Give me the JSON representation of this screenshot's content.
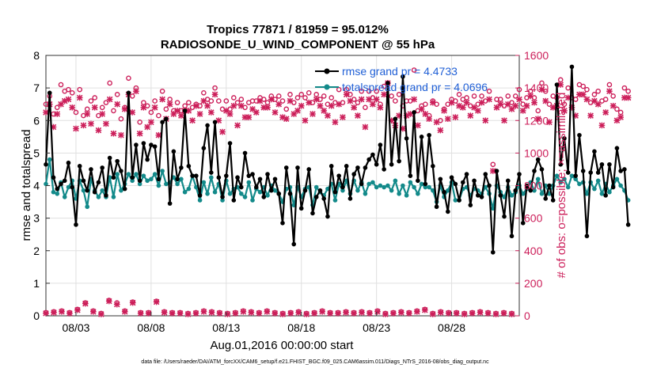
{
  "colors": {
    "rmse": "#000000",
    "spread": "#138a8a",
    "obs": "#cc1f5a",
    "legend_text": "#1f5fd6",
    "axis": "#333333",
    "grid": "#e0e0e0"
  },
  "chart_data": {
    "type": "line",
    "title_line1": "Tropics 77871 / 81959 = 95.012%",
    "title_line2": "RADIOSONDE_U_WIND_COMPONENT @ 55 hPa",
    "xlabel": "Aug.01,2016 00:00:00 start",
    "ylabel_left": "rmse and totalspread",
    "ylabel_right": "# of obs: o=possible; ×=assimilated",
    "footnote": "data file: /Users/raeder/DAI/ATM_forcXX/CAM6_setup/f.e21.FHIST_BGC.f09_025.CAM6assim.011/Diags_NTrS_2016-08/obs_diag_output.nc",
    "x_range": [
      1,
      32.5
    ],
    "x_ticks": [
      3,
      8,
      13,
      18,
      23,
      28
    ],
    "x_tick_labels": [
      "08/03",
      "08/08",
      "08/13",
      "08/18",
      "08/23",
      "08/28"
    ],
    "y_left_range": [
      0,
      8
    ],
    "y_left_ticks": [
      "0",
      "1",
      "2",
      "3",
      "4",
      "5",
      "6",
      "7",
      "8"
    ],
    "y_right_range": [
      0,
      1600
    ],
    "y_right_ticks": [
      "0",
      "200",
      "400",
      "600",
      "800",
      "1000",
      "1200",
      "1400",
      "1600"
    ],
    "grid": true,
    "legend_position": "top-right",
    "legend": [
      {
        "name": "rmse grand pr = 4.4733",
        "series": "rmse"
      },
      {
        "name": "totalspread grand pr = 4.0696",
        "series": "totalspread"
      }
    ],
    "x_start": 1.0,
    "x_step": 0.25,
    "rmse": [
      4.65,
      6.85,
      4.25,
      3.9,
      4.05,
      4.15,
      4.7,
      3.95,
      2.8,
      4.6,
      4.15,
      3.85,
      4.5,
      3.8,
      4.1,
      4.55,
      3.7,
      4.85,
      4.25,
      4.75,
      4.45,
      3.9,
      6.85,
      4.25,
      5.25,
      4.15,
      5.3,
      4.8,
      5.25,
      5.2,
      4.2,
      5.95,
      6.05,
      3.45,
      5.05,
      4.2,
      4.55,
      6.3,
      4.6,
      4.3,
      4.3,
      3.7,
      5.15,
      5.85,
      4.4,
      5.95,
      4.25,
      3.65,
      4.3,
      5.3,
      3.55,
      4.25,
      3.95,
      5.0,
      4.3,
      4.35,
      3.95,
      4.2,
      3.65,
      4.35,
      3.85,
      4.2,
      3.75,
      2.85,
      4.55,
      3.75,
      2.2,
      4.55,
      3.3,
      3.85,
      4.5,
      3.15,
      3.65,
      3.85,
      3.6,
      3.05,
      4.6,
      3.8,
      4.3,
      3.95,
      4.6,
      3.6,
      4.35,
      4.55,
      4.05,
      4.55,
      4.8,
      4.95,
      4.65,
      5.25,
      4.5,
      7.15,
      4.65,
      6.05,
      4.75,
      7.35,
      5.45,
      4.3,
      6.25,
      4.15,
      5.5,
      4.05,
      5.55,
      4.6,
      3.35,
      4.2,
      3.8,
      3.2,
      4.25,
      4.05,
      3.55,
      4.1,
      4.35,
      3.4,
      4.15,
      3.7,
      3.65,
      4.35,
      4.0,
      1.95,
      4.45,
      3.7,
      3.05,
      4.15,
      2.45,
      3.85,
      4.35,
      2.85,
      4.0,
      3.85,
      4.45,
      4.8,
      4.5,
      3.6,
      4.0,
      3.55,
      7.1,
      4.65,
      5.45,
      4.4,
      7.65,
      4.3,
      5.55,
      4.45,
      2.45,
      4.4,
      5.05,
      4.4,
      4.65,
      3.7,
      4.65,
      3.95,
      5.15,
      4.45,
      4.5,
      2.8
    ],
    "totalspread": [
      4.05,
      4.8,
      3.8,
      3.75,
      4.1,
      3.65,
      3.95,
      4.15,
      3.6,
      4.15,
      3.85,
      3.35,
      4.2,
      3.85,
      3.65,
      3.85,
      3.65,
      4.25,
      3.65,
      4.35,
      3.85,
      4.05,
      4.35,
      4.15,
      4.35,
      4.05,
      4.3,
      4.15,
      4.2,
      4.35,
      4.0,
      4.45,
      4.05,
      4.1,
      4.25,
      4.05,
      4.2,
      3.8,
      3.9,
      4.3,
      3.95,
      3.55,
      4.1,
      3.75,
      4.25,
      3.8,
      4.05,
      3.55,
      4.15,
      3.75,
      3.9,
      3.95,
      3.75,
      3.65,
      4.1,
      3.55,
      3.9,
      3.8,
      3.95,
      3.7,
      4.0,
      3.85,
      3.75,
      3.5,
      3.9,
      3.95,
      3.4,
      3.95,
      3.65,
      3.9,
      3.95,
      3.4,
      3.95,
      3.8,
      3.7,
      3.9,
      4.05,
      3.55,
      4.05,
      3.85,
      4.15,
      3.75,
      4.15,
      3.85,
      4.1,
      3.75,
      4.05,
      4.1,
      3.95,
      4.0,
      3.95,
      4.0,
      3.85,
      4.15,
      3.75,
      4.0,
      3.7,
      4.1,
      3.95,
      3.75,
      4.05,
      3.95,
      3.95,
      3.85,
      3.5,
      4.0,
      3.65,
      3.85,
      4.1,
      3.55,
      3.55,
      3.9,
      3.95,
      3.7,
      3.9,
      3.85,
      3.75,
      3.95,
      3.75,
      3.3,
      4.0,
      3.8,
      3.65,
      3.95,
      3.7,
      3.8,
      4.0,
      3.75,
      3.9,
      4.1,
      3.85,
      4.2,
      3.75,
      4.0,
      3.75,
      4.0,
      4.3,
      4.1,
      4.2,
      3.95,
      4.3,
      4.2,
      4.05,
      4.1,
      3.75,
      4.1,
      3.9,
      4.15,
      3.75,
      4.05,
      3.8,
      4.0,
      4.2,
      4.0,
      3.85,
      3.55
    ],
    "obs_possible": [
      1300,
      1350,
      1240,
      1280,
      1420,
      1380,
      1390,
      1370,
      1250,
      1390,
      1230,
      1270,
      1320,
      1340,
      1230,
      1280,
      1310,
      1430,
      1260,
      1360,
      1210,
      1280,
      1460,
      1350,
      1400,
      1190,
      1310,
      1290,
      1250,
      1320,
      1230,
      1380,
      1270,
      1330,
      1260,
      1310,
      1260,
      1290,
      1310,
      1280,
      1300,
      1290,
      1370,
      1330,
      1320,
      1400,
      1320,
      1270,
      1320,
      1270,
      1340,
      1310,
      1330,
      1280,
      1310,
      1320,
      1320,
      1340,
      1330,
      1310,
      1350,
      1330,
      1350,
      1320,
      1270,
      1360,
      1310,
      1340,
      1360,
      1340,
      1370,
      1310,
      1360,
      1330,
      1350,
      1300,
      1340,
      1310,
      1390,
      1310,
      1390,
      1360,
      1330,
      1310,
      1380,
      1280,
      1380,
      1340,
      1380,
      1300,
      1410,
      1430,
      1350,
      1320,
      1360,
      1290,
      1320,
      1320,
      1510,
      1260,
      1290,
      1300,
      1230,
      1320,
      1300,
      1200,
      1270,
      1300,
      1330,
      1320,
      1360,
      1330,
      1340,
      1290,
      1350,
      1300,
      1350,
      1320,
      1380,
      930,
      1330,
      1330,
      1290,
      1350,
      1310,
      1350,
      1390,
      1300,
      1340,
      1380,
      1340,
      1260,
      1430,
      1380,
      1300,
      1350,
      1340,
      1450,
      1300,
      1400,
      1340,
      1330,
      1420,
      1410,
      1390,
      1310,
      1360,
      1380,
      1320,
      1330,
      1420,
      1350,
      1270,
      1250,
      1400,
      1380
    ],
    "obs_assimilated": [
      1250,
      1300,
      1160,
      1240,
      1300,
      1320,
      1330,
      1280,
      1150,
      1340,
      1170,
      1240,
      1180,
      1280,
      1140,
      1240,
      1180,
      1330,
      1120,
      1300,
      1110,
      1270,
      1360,
      1250,
      1380,
      1120,
      1280,
      1160,
      1190,
      1280,
      1110,
      1330,
      1210,
      1300,
      1240,
      1260,
      1230,
      1260,
      1260,
      1200,
      1290,
      1240,
      1320,
      1290,
      1250,
      1360,
      1200,
      1130,
      1260,
      1240,
      1290,
      1170,
      1290,
      1220,
      1220,
      1270,
      1250,
      1320,
      1280,
      1280,
      1330,
      1250,
      1300,
      1220,
      1210,
      1320,
      1240,
      1260,
      1290,
      1200,
      1310,
      1240,
      1330,
      1290,
      1260,
      1230,
      1290,
      1190,
      1300,
      1220,
      1360,
      1320,
      1280,
      1230,
      1330,
      1160,
      1330,
      1300,
      1330,
      1280,
      1360,
      1430,
      1200,
      1170,
      1230,
      1150,
      1230,
      1240,
      1330,
      1170,
      1270,
      1240,
      1210,
      1310,
      1190,
      1140,
      1260,
      1210,
      1310,
      1220,
      1290,
      1280,
      1310,
      1230,
      1280,
      1260,
      1310,
      1200,
      1330,
      890,
      1280,
      1300,
      1200,
      1300,
      1270,
      1290,
      1330,
      1260,
      1290,
      1350,
      1310,
      1210,
      1390,
      1320,
      1190,
      1280,
      1290,
      1420,
      1260,
      1340,
      1280,
      1230,
      1360,
      1360,
      1330,
      1230,
      1320,
      1300,
      1170,
      1250,
      1380,
      1290,
      1200,
      1220,
      1340,
      1340
    ],
    "obs_low_possible": [
      20,
      25,
      30,
      20,
      40,
      80,
      30,
      15,
      95,
      80,
      30,
      85,
      20,
      20,
      90,
      25,
      20,
      20,
      15,
      20,
      30,
      25,
      20,
      15,
      20,
      30,
      25,
      20,
      30,
      20,
      15,
      20,
      25,
      15,
      20,
      30,
      20,
      20,
      25,
      20,
      25,
      20,
      30,
      15,
      20,
      25,
      20,
      30,
      40,
      15,
      25,
      20,
      20,
      15,
      20,
      25,
      20,
      15,
      20,
      15
    ],
    "obs_low_assimilated": [
      15,
      20,
      25,
      15,
      35,
      75,
      25,
      10,
      90,
      70,
      25,
      80,
      15,
      15,
      85,
      20,
      15,
      15,
      10,
      15,
      25,
      20,
      15,
      10,
      15,
      25,
      20,
      15,
      25,
      15,
      10,
      15,
      20,
      10,
      15,
      25,
      15,
      15,
      20,
      15,
      20,
      15,
      25,
      10,
      15,
      20,
      15,
      25,
      35,
      10,
      20,
      15,
      15,
      10,
      15,
      20,
      15,
      10,
      15,
      10
    ]
  }
}
